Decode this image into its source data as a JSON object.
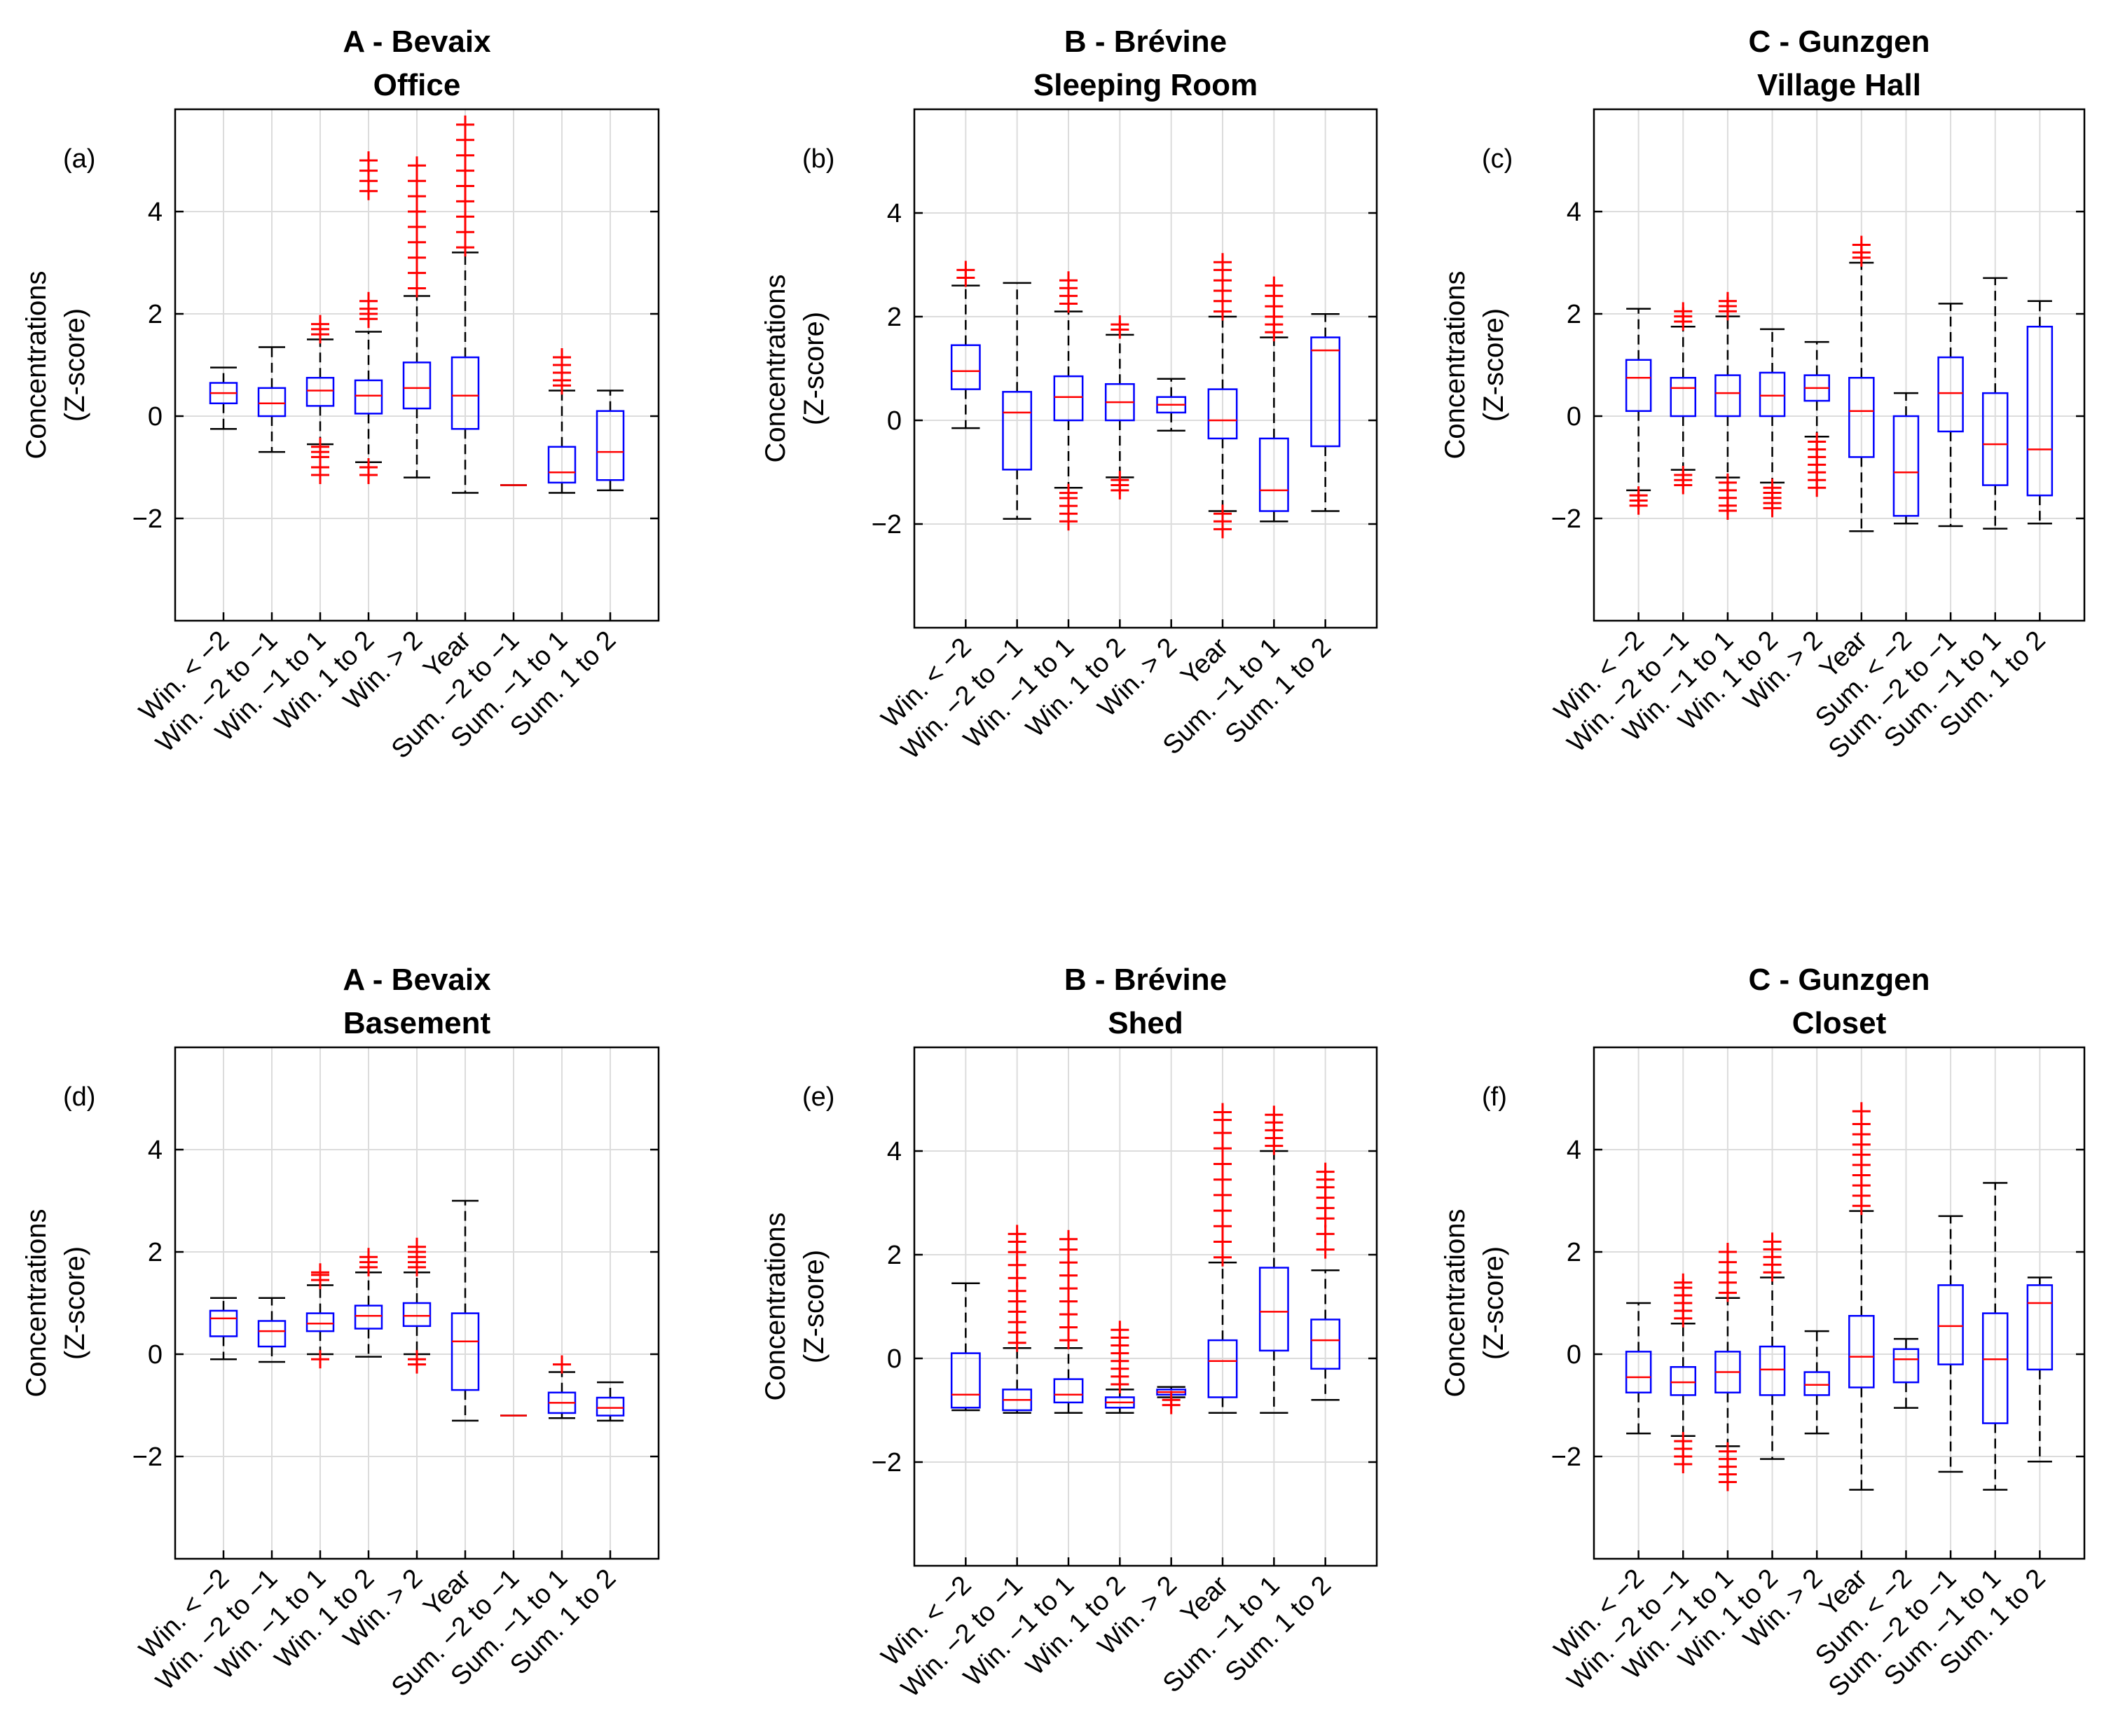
{
  "colors": {
    "box": "#0000ff",
    "median": "#ff0000",
    "outlier": "#ff0000",
    "whisker": "#000000",
    "grid": "#dcdcdc",
    "axis": "#000000"
  },
  "chart_data": [
    {
      "type": "box",
      "label": "(a)",
      "title": [
        "A - Bevaix",
        "Office"
      ],
      "ylabel": [
        "Concentrations",
        "(Z-score)"
      ],
      "ylim": [
        -4,
        6
      ],
      "yticks": [
        -2,
        0,
        2,
        4
      ],
      "grid": true,
      "categories": [
        "Win. < −2",
        "Win. −2 to −1",
        "Win. −1 to 1",
        "Win. 1 to 2",
        "Win. > 2",
        "Year",
        "Sum. −2 to −1",
        "Sum. −1 to 1",
        "Sum. 1 to 2"
      ],
      "boxes": [
        {
          "q1": 0.25,
          "median": 0.45,
          "q3": 0.65,
          "lo": -0.25,
          "hi": 0.95,
          "outliers": []
        },
        {
          "q1": 0.0,
          "median": 0.25,
          "q3": 0.55,
          "lo": -0.7,
          "hi": 1.35,
          "outliers": []
        },
        {
          "q1": 0.2,
          "median": 0.5,
          "q3": 0.75,
          "lo": -0.55,
          "hi": 1.5,
          "outliers": [
            -0.6,
            -0.7,
            -0.8,
            -1.0,
            -1.15,
            1.6,
            1.7,
            1.8
          ]
        },
        {
          "q1": 0.05,
          "median": 0.4,
          "q3": 0.7,
          "lo": -0.9,
          "hi": 1.65,
          "outliers": [
            -1.0,
            -1.15,
            1.9,
            2.0,
            2.1,
            2.25,
            4.4,
            4.6,
            4.8,
            5.0
          ]
        },
        {
          "q1": 0.15,
          "median": 0.55,
          "q3": 1.05,
          "lo": -1.2,
          "hi": 2.35,
          "outliers": [
            2.5,
            2.8,
            3.1,
            3.4,
            3.7,
            4.0,
            4.3,
            4.6,
            4.9
          ]
        },
        {
          "q1": -0.25,
          "median": 0.4,
          "q3": 1.15,
          "lo": -1.5,
          "hi": 3.2,
          "outliers": [
            3.3,
            3.6,
            3.9,
            4.2,
            4.5,
            4.8,
            5.1,
            5.4,
            5.7
          ]
        },
        {
          "q1": -1.35,
          "median": -1.35,
          "q3": -1.35,
          "lo": -1.35,
          "hi": -1.35,
          "outliers": []
        },
        {
          "q1": -1.3,
          "median": -1.1,
          "q3": -0.6,
          "lo": -1.5,
          "hi": 0.5,
          "outliers": [
            0.6,
            0.7,
            0.85,
            1.0,
            1.15
          ]
        },
        {
          "q1": -1.25,
          "median": -0.7,
          "q3": 0.1,
          "lo": -1.45,
          "hi": 0.5,
          "outliers": []
        }
      ]
    },
    {
      "type": "box",
      "label": "(b)",
      "title": [
        "B - Brévine",
        "Sleeping Room"
      ],
      "ylabel": [
        "Concentrations",
        "(Z-score)"
      ],
      "ylim": [
        -4,
        6
      ],
      "yticks": [
        -2,
        0,
        2,
        4
      ],
      "grid": true,
      "categories": [
        "Win. < −2",
        "Win. −2 to −1",
        "Win. −1 to 1",
        "Win. 1 to 2",
        "Win. > 2",
        "Year",
        "Sum. −1 to 1",
        "Sum. 1 to 2"
      ],
      "boxes": [
        {
          "q1": 0.6,
          "median": 0.95,
          "q3": 1.45,
          "lo": -0.15,
          "hi": 2.6,
          "outliers": [
            2.75,
            2.9
          ]
        },
        {
          "q1": -0.95,
          "median": 0.15,
          "q3": 0.55,
          "lo": -1.9,
          "hi": 2.65,
          "outliers": []
        },
        {
          "q1": 0.0,
          "median": 0.45,
          "q3": 0.85,
          "lo": -1.3,
          "hi": 2.1,
          "outliers": [
            -1.4,
            -1.5,
            -1.65,
            -1.8,
            -1.95,
            2.25,
            2.4,
            2.55,
            2.7
          ]
        },
        {
          "q1": 0.0,
          "median": 0.35,
          "q3": 0.7,
          "lo": -1.1,
          "hi": 1.65,
          "outliers": [
            -1.15,
            -1.25,
            -1.35,
            1.75,
            1.85
          ]
        },
        {
          "q1": 0.15,
          "median": 0.3,
          "q3": 0.45,
          "lo": -0.2,
          "hi": 0.8,
          "outliers": []
        },
        {
          "q1": -0.35,
          "median": 0.0,
          "q3": 0.6,
          "lo": -1.75,
          "hi": 2.0,
          "outliers": [
            -1.8,
            -1.95,
            -2.1,
            2.1,
            2.3,
            2.5,
            2.7,
            2.9,
            3.05
          ]
        },
        {
          "q1": -1.75,
          "median": -1.35,
          "q3": -0.35,
          "lo": -1.95,
          "hi": 1.6,
          "outliers": [
            1.7,
            1.85,
            2.0,
            2.2,
            2.4,
            2.6
          ]
        },
        {
          "q1": -0.5,
          "median": 1.35,
          "q3": 1.6,
          "lo": -1.75,
          "hi": 2.05,
          "outliers": []
        }
      ]
    },
    {
      "type": "box",
      "label": "(c)",
      "title": [
        "C - Gunzgen",
        "Village Hall"
      ],
      "ylabel": [
        "Concentrations",
        "(Z-score)"
      ],
      "ylim": [
        -4,
        6
      ],
      "yticks": [
        -2,
        0,
        2,
        4
      ],
      "grid": true,
      "categories": [
        "Win. < −2",
        "Win. −2 to −1",
        "Win. −1 to 1",
        "Win. 1 to 2",
        "Win. > 2",
        "Year",
        "Sum. < −2",
        "Sum. −2 to −1",
        "Sum. −1 to 1",
        "Sum. 1 to 2"
      ],
      "boxes": [
        {
          "q1": 0.1,
          "median": 0.75,
          "q3": 1.1,
          "lo": -1.45,
          "hi": 2.1,
          "outliers": [
            -1.55,
            -1.65,
            -1.75
          ]
        },
        {
          "q1": 0.0,
          "median": 0.55,
          "q3": 0.75,
          "lo": -1.05,
          "hi": 1.75,
          "outliers": [
            -1.15,
            -1.25,
            -1.35,
            1.85,
            1.95,
            2.05
          ]
        },
        {
          "q1": 0.0,
          "median": 0.45,
          "q3": 0.8,
          "lo": -1.2,
          "hi": 1.95,
          "outliers": [
            -1.3,
            -1.45,
            -1.6,
            -1.75,
            -1.85,
            2.05,
            2.15,
            2.25
          ]
        },
        {
          "q1": 0.0,
          "median": 0.4,
          "q3": 0.85,
          "lo": -1.3,
          "hi": 1.7,
          "outliers": [
            -1.4,
            -1.5,
            -1.6,
            -1.7,
            -1.8
          ]
        },
        {
          "q1": 0.3,
          "median": 0.55,
          "q3": 0.8,
          "lo": -0.4,
          "hi": 1.45,
          "outliers": [
            -0.5,
            -0.65,
            -0.8,
            -0.95,
            -1.1,
            -1.25,
            -1.4
          ]
        },
        {
          "q1": -0.8,
          "median": 0.1,
          "q3": 0.75,
          "lo": -2.25,
          "hi": 3.0,
          "outliers": [
            3.1,
            3.2,
            3.35
          ]
        },
        {
          "q1": -1.95,
          "median": -1.1,
          "q3": 0.0,
          "lo": -2.1,
          "hi": 0.45,
          "outliers": []
        },
        {
          "q1": -0.3,
          "median": 0.45,
          "q3": 1.15,
          "lo": -2.15,
          "hi": 2.2,
          "outliers": []
        },
        {
          "q1": -1.35,
          "median": -0.55,
          "q3": 0.45,
          "lo": -2.2,
          "hi": 2.7,
          "outliers": []
        },
        {
          "q1": -1.55,
          "median": -0.65,
          "q3": 1.75,
          "lo": -2.1,
          "hi": 2.25,
          "outliers": []
        }
      ]
    },
    {
      "type": "box",
      "label": "(d)",
      "title": [
        "A - Bevaix",
        "Basement"
      ],
      "ylabel": [
        "Concentrations",
        "(Z-score)"
      ],
      "ylim": [
        -4,
        6
      ],
      "yticks": [
        -2,
        0,
        2,
        4
      ],
      "grid": true,
      "categories": [
        "Win. < −2",
        "Win. −2 to −1",
        "Win. −1 to 1",
        "Win. 1 to 2",
        "Win. > 2",
        "Year",
        "Sum. −2 to −1",
        "Sum. −1 to 1",
        "Sum. 1 to 2"
      ],
      "boxes": [
        {
          "q1": 0.35,
          "median": 0.7,
          "q3": 0.85,
          "lo": -0.1,
          "hi": 1.1,
          "outliers": []
        },
        {
          "q1": 0.15,
          "median": 0.45,
          "q3": 0.65,
          "lo": -0.15,
          "hi": 1.1,
          "outliers": []
        },
        {
          "q1": 0.45,
          "median": 0.6,
          "q3": 0.8,
          "lo": 0.0,
          "hi": 1.35,
          "outliers": [
            -0.1,
            1.45,
            1.55,
            1.6
          ]
        },
        {
          "q1": 0.5,
          "median": 0.75,
          "q3": 0.95,
          "lo": -0.05,
          "hi": 1.6,
          "outliers": [
            1.7,
            1.8,
            1.9
          ]
        },
        {
          "q1": 0.55,
          "median": 0.75,
          "q3": 1.0,
          "lo": 0.0,
          "hi": 1.6,
          "outliers": [
            -0.1,
            -0.2,
            1.7,
            1.8,
            1.9,
            2.0,
            2.1
          ]
        },
        {
          "q1": -0.7,
          "median": 0.25,
          "q3": 0.8,
          "lo": -1.3,
          "hi": 3.0,
          "outliers": []
        },
        {
          "q1": -1.2,
          "median": -1.2,
          "q3": -1.2,
          "lo": -1.2,
          "hi": -1.2,
          "outliers": []
        },
        {
          "q1": -1.15,
          "median": -0.95,
          "q3": -0.75,
          "lo": -1.25,
          "hi": -0.35,
          "outliers": [
            -0.2
          ]
        },
        {
          "q1": -1.2,
          "median": -1.05,
          "q3": -0.85,
          "lo": -1.3,
          "hi": -0.55,
          "outliers": []
        }
      ]
    },
    {
      "type": "box",
      "label": "(e)",
      "title": [
        "B - Brévine",
        "Shed"
      ],
      "ylabel": [
        "Concentrations",
        "(Z-score)"
      ],
      "ylim": [
        -4,
        6
      ],
      "yticks": [
        -2,
        0,
        2,
        4
      ],
      "grid": true,
      "categories": [
        "Win. < −2",
        "Win. −2 to −1",
        "Win. −1 to 1",
        "Win. 1 to 2",
        "Win. > 2",
        "Year",
        "Sum. −1 to 1",
        "Sum. 1 to 2"
      ],
      "boxes": [
        {
          "q1": -0.95,
          "median": -0.7,
          "q3": 0.1,
          "lo": -1.0,
          "hi": 1.45,
          "outliers": []
        },
        {
          "q1": -1.0,
          "median": -0.8,
          "q3": -0.6,
          "lo": -1.05,
          "hi": 0.2,
          "outliers": [
            0.3,
            0.5,
            0.7,
            0.9,
            1.1,
            1.3,
            1.55,
            1.8,
            2.05,
            2.25,
            2.4
          ]
        },
        {
          "q1": -0.85,
          "median": -0.7,
          "q3": -0.4,
          "lo": -1.05,
          "hi": 0.2,
          "outliers": [
            0.35,
            0.6,
            0.85,
            1.1,
            1.35,
            1.6,
            1.85,
            2.1,
            2.3
          ]
        },
        {
          "q1": -0.95,
          "median": -0.85,
          "q3": -0.75,
          "lo": -1.05,
          "hi": -0.6,
          "outliers": [
            -0.5,
            -0.35,
            -0.2,
            -0.05,
            0.1,
            0.25,
            0.4,
            0.55
          ]
        },
        {
          "q1": -0.7,
          "median": -0.65,
          "q3": -0.6,
          "lo": -0.75,
          "hi": -0.55,
          "outliers": [
            -0.8,
            -0.9
          ]
        },
        {
          "q1": -0.75,
          "median": -0.05,
          "q3": 0.35,
          "lo": -1.05,
          "hi": 1.85,
          "outliers": [
            1.95,
            2.25,
            2.55,
            2.85,
            3.15,
            3.45,
            3.75,
            4.05,
            4.35,
            4.6,
            4.75
          ]
        },
        {
          "q1": 0.15,
          "median": 0.9,
          "q3": 1.75,
          "lo": -1.05,
          "hi": 4.0,
          "outliers": [
            4.1,
            4.25,
            4.4,
            4.55,
            4.7
          ]
        },
        {
          "q1": -0.2,
          "median": 0.35,
          "q3": 0.75,
          "lo": -0.8,
          "hi": 1.7,
          "outliers": [
            2.1,
            2.4,
            2.7,
            2.9,
            3.1,
            3.3,
            3.45,
            3.6
          ]
        }
      ]
    },
    {
      "type": "box",
      "label": "(f)",
      "title": [
        "C - Gunzgen",
        "Closet"
      ],
      "ylabel": [
        "Concentrations",
        "(Z-score)"
      ],
      "ylim": [
        -4,
        6
      ],
      "yticks": [
        -2,
        0,
        2,
        4
      ],
      "grid": true,
      "categories": [
        "Win. < −2",
        "Win. −2 to −1",
        "Win. −1 to 1",
        "Win. 1 to 2",
        "Win. > 2",
        "Year",
        "Sum. < −2",
        "Sum. −2 to −1",
        "Sum. −1 to 1",
        "Sum. 1 to 2"
      ],
      "boxes": [
        {
          "q1": -0.75,
          "median": -0.45,
          "q3": 0.05,
          "lo": -1.55,
          "hi": 1.0,
          "outliers": []
        },
        {
          "q1": -0.8,
          "median": -0.55,
          "q3": -0.25,
          "lo": -1.6,
          "hi": 0.6,
          "outliers": [
            -1.7,
            -1.85,
            -2.0,
            -2.15,
            0.7,
            0.85,
            1.0,
            1.15,
            1.3,
            1.4
          ]
        },
        {
          "q1": -0.75,
          "median": -0.35,
          "q3": 0.05,
          "lo": -1.8,
          "hi": 1.1,
          "outliers": [
            -1.9,
            -2.05,
            -2.2,
            -2.35,
            -2.5,
            1.2,
            1.4,
            1.6,
            1.8,
            2.0
          ]
        },
        {
          "q1": -0.8,
          "median": -0.3,
          "q3": 0.15,
          "lo": -2.05,
          "hi": 1.5,
          "outliers": [
            1.6,
            1.75,
            1.9,
            2.05,
            2.2
          ]
        },
        {
          "q1": -0.8,
          "median": -0.6,
          "q3": -0.35,
          "lo": -1.55,
          "hi": 0.45,
          "outliers": []
        },
        {
          "q1": -0.65,
          "median": -0.05,
          "q3": 0.75,
          "lo": -2.65,
          "hi": 2.8,
          "outliers": [
            2.9,
            3.1,
            3.3,
            3.5,
            3.7,
            3.9,
            4.1,
            4.3,
            4.5,
            4.75
          ]
        },
        {
          "q1": -0.55,
          "median": -0.1,
          "q3": 0.1,
          "lo": -1.05,
          "hi": 0.3,
          "outliers": []
        },
        {
          "q1": -0.2,
          "median": 0.55,
          "q3": 1.35,
          "lo": -2.3,
          "hi": 2.7,
          "outliers": []
        },
        {
          "q1": -1.35,
          "median": -0.1,
          "q3": 0.8,
          "lo": -2.65,
          "hi": 3.35,
          "outliers": []
        },
        {
          "q1": -0.3,
          "median": 1.0,
          "q3": 1.35,
          "lo": -2.1,
          "hi": 1.5,
          "outliers": []
        }
      ]
    }
  ]
}
